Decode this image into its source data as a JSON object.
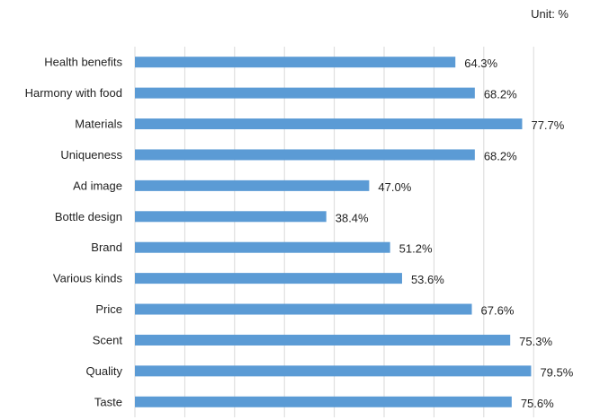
{
  "chart_data": {
    "type": "bar",
    "orientation": "horizontal",
    "unit_label": "Unit: %",
    "categories": [
      "Health benefits",
      "Harmony with food",
      "Materials",
      "Uniqueness",
      "Ad image",
      "Bottle design",
      "Brand",
      "Various kinds",
      "Price",
      "Scent",
      "Quality",
      "Taste"
    ],
    "values": [
      64.3,
      68.2,
      77.7,
      68.2,
      47.0,
      38.4,
      51.2,
      53.6,
      67.6,
      75.3,
      79.5,
      75.6
    ],
    "value_labels": [
      "64.3%",
      "68.2%",
      "77.7%",
      "68.2%",
      "47.0%",
      "38.4%",
      "51.2%",
      "53.6%",
      "67.6%",
      "75.3%",
      "79.5%",
      "75.6%"
    ],
    "xlim": [
      0,
      87
    ],
    "grid_step": 10,
    "grid": true,
    "legend": "none",
    "colors": {
      "bar": "#5b9bd5",
      "grid": "#d9d9d9",
      "text": "#222222"
    }
  }
}
